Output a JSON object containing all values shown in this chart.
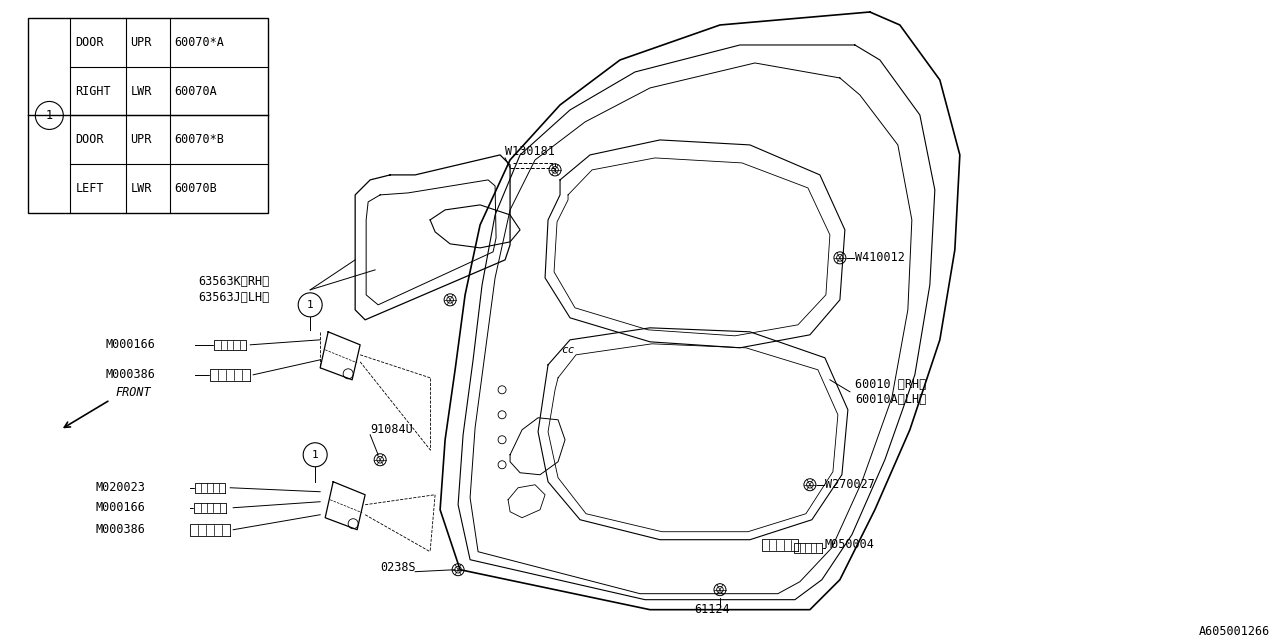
{
  "bg_color": "#ffffff",
  "line_color": "#000000",
  "fig_width": 12.8,
  "fig_height": 6.4,
  "part_code": "A605001266",
  "table_rows": [
    [
      "DOOR",
      "UPR",
      "60070*A"
    ],
    [
      "RIGHT",
      "LWR",
      "60070A"
    ],
    [
      "DOOR",
      "UPR",
      "60070*B"
    ],
    [
      "LEFT",
      "LWR",
      "60070B"
    ]
  ],
  "font_size": 7.2,
  "small_font": 6.5
}
